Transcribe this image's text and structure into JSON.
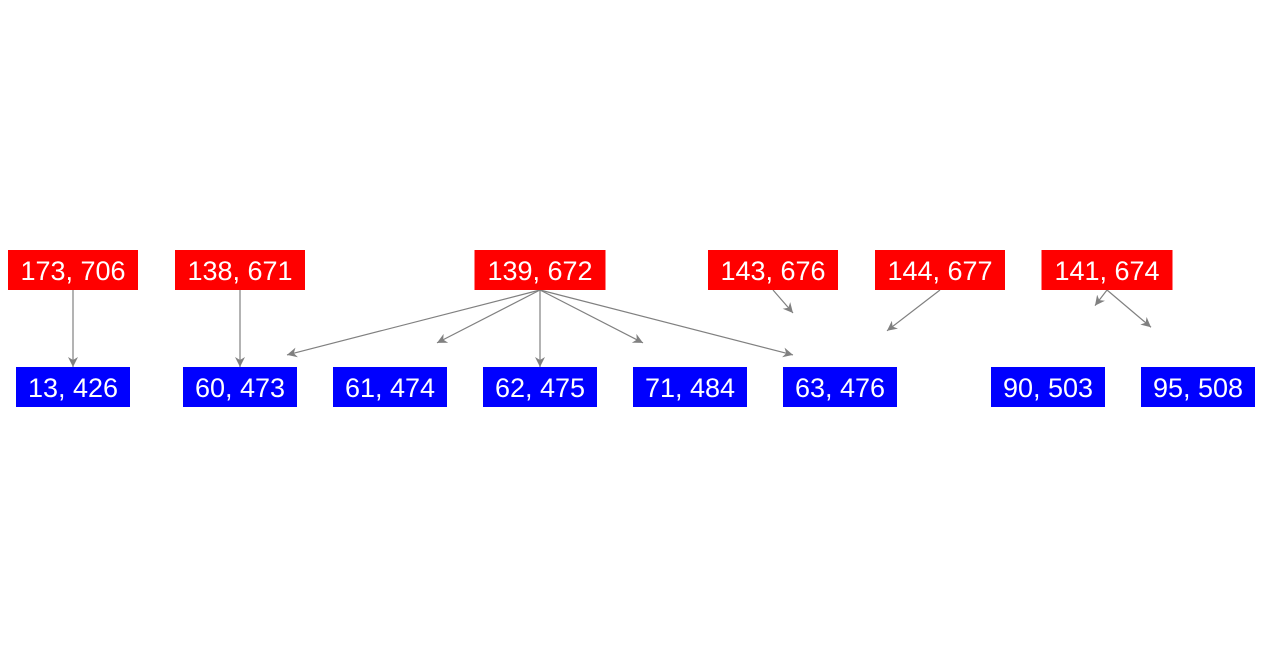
{
  "nodes": [
    {
      "label": "173, 706"
    },
    {
      "label": "138, 671"
    },
    {
      "label": "139, 672"
    },
    {
      "label": "143, 676"
    },
    {
      "label": "144, 677"
    },
    {
      "label": "141, 674"
    },
    {
      "label": "13, 426"
    },
    {
      "label": "60, 473"
    },
    {
      "label": "61, 474"
    },
    {
      "label": "62, 475"
    },
    {
      "label": "71, 484"
    },
    {
      "label": "63, 476"
    },
    {
      "label": "90, 503"
    },
    {
      "label": "95, 508"
    }
  ],
  "edges": [
    {
      "from": 0,
      "to": 6
    },
    {
      "from": 1,
      "to": 7
    },
    {
      "from": 2,
      "to": 7
    },
    {
      "from": 2,
      "to": 8
    },
    {
      "from": 2,
      "to": 9
    },
    {
      "from": 2,
      "to": 10
    },
    {
      "from": 2,
      "to": 11
    },
    {
      "from": 3,
      "to": 11
    },
    {
      "from": 4,
      "to": 11
    },
    {
      "from": 5,
      "to": 12
    },
    {
      "from": 5,
      "to": 13
    }
  ]
}
